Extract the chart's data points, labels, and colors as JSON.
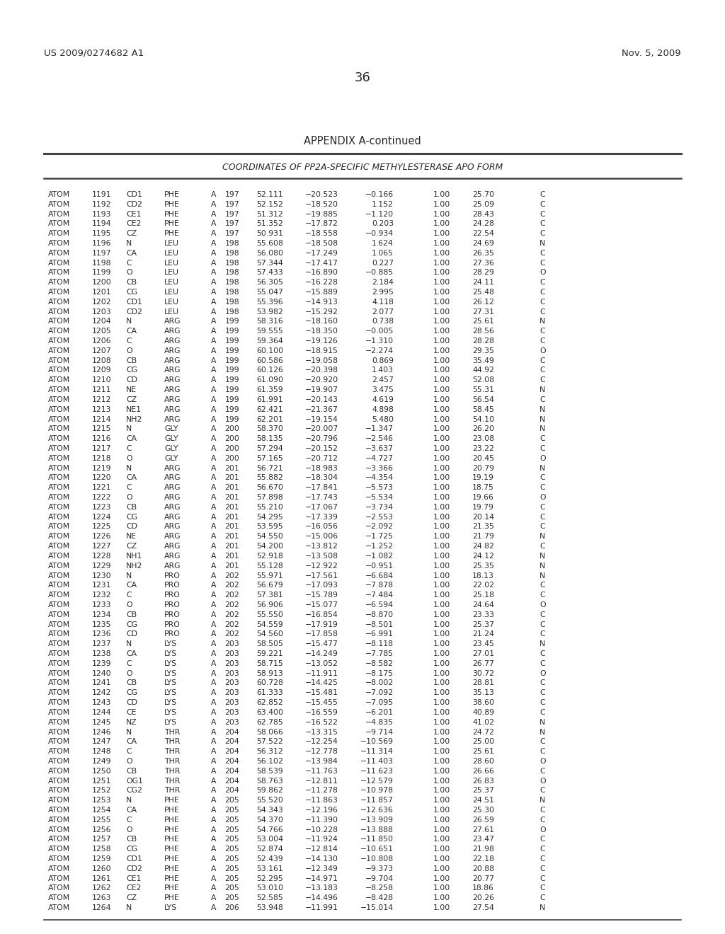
{
  "header_left": "US 2009/0274682 A1",
  "header_right": "Nov. 5, 2009",
  "page_number": "36",
  "appendix_title": "APPENDIX A-continued",
  "table_title": "COORDINATES OF PP2A-SPECIFIC METHYLESTERASE APO FORM",
  "rows": [
    [
      "ATOM",
      "1191",
      "CD1",
      "PHE",
      "A",
      "197",
      "52.111",
      "-20.523",
      "-0.166",
      "1.00",
      "25.70",
      "C"
    ],
    [
      "ATOM",
      "1192",
      "CD2",
      "PHE",
      "A",
      "197",
      "52.152",
      "-18.520",
      "1.152",
      "1.00",
      "25.09",
      "C"
    ],
    [
      "ATOM",
      "1193",
      "CE1",
      "PHE",
      "A",
      "197",
      "51.312",
      "-19.885",
      "-1.120",
      "1.00",
      "28.43",
      "C"
    ],
    [
      "ATOM",
      "1194",
      "CE2",
      "PHE",
      "A",
      "197",
      "51.352",
      "-17.872",
      "0.203",
      "1.00",
      "24.28",
      "C"
    ],
    [
      "ATOM",
      "1195",
      "CZ",
      "PHE",
      "A",
      "197",
      "50.931",
      "-18.558",
      "-0.934",
      "1.00",
      "22.54",
      "C"
    ],
    [
      "ATOM",
      "1196",
      "N",
      "LEU",
      "A",
      "198",
      "55.608",
      "-18.508",
      "1.624",
      "1.00",
      "24.69",
      "N"
    ],
    [
      "ATOM",
      "1197",
      "CA",
      "LEU",
      "A",
      "198",
      "56.080",
      "-17.249",
      "1.065",
      "1.00",
      "26.35",
      "C"
    ],
    [
      "ATOM",
      "1198",
      "C",
      "LEU",
      "A",
      "198",
      "57.344",
      "-17.417",
      "0.227",
      "1.00",
      "27.36",
      "C"
    ],
    [
      "ATOM",
      "1199",
      "O",
      "LEU",
      "A",
      "198",
      "57.433",
      "-16.890",
      "-0.885",
      "1.00",
      "28.29",
      "O"
    ],
    [
      "ATOM",
      "1200",
      "CB",
      "LEU",
      "A",
      "198",
      "56.305",
      "-16.228",
      "2.184",
      "1.00",
      "24.11",
      "C"
    ],
    [
      "ATOM",
      "1201",
      "CG",
      "LEU",
      "A",
      "198",
      "55.047",
      "-15.889",
      "2.995",
      "1.00",
      "25.48",
      "C"
    ],
    [
      "ATOM",
      "1202",
      "CD1",
      "LEU",
      "A",
      "198",
      "55.396",
      "-14.913",
      "4.118",
      "1.00",
      "26.12",
      "C"
    ],
    [
      "ATOM",
      "1203",
      "CD2",
      "LEU",
      "A",
      "198",
      "53.982",
      "-15.292",
      "2.077",
      "1.00",
      "27.31",
      "C"
    ],
    [
      "ATOM",
      "1204",
      "N",
      "ARG",
      "A",
      "199",
      "58.316",
      "-18.160",
      "0.738",
      "1.00",
      "25.61",
      "N"
    ],
    [
      "ATOM",
      "1205",
      "CA",
      "ARG",
      "A",
      "199",
      "59.555",
      "-18.350",
      "-0.005",
      "1.00",
      "28.56",
      "C"
    ],
    [
      "ATOM",
      "1206",
      "C",
      "ARG",
      "A",
      "199",
      "59.364",
      "-19.126",
      "-1.310",
      "1.00",
      "28.28",
      "C"
    ],
    [
      "ATOM",
      "1207",
      "O",
      "ARG",
      "A",
      "199",
      "60.100",
      "-18.915",
      "-2.274",
      "1.00",
      "29.35",
      "O"
    ],
    [
      "ATOM",
      "1208",
      "CB",
      "ARG",
      "A",
      "199",
      "60.586",
      "-19.058",
      "0.869",
      "1.00",
      "35.49",
      "C"
    ],
    [
      "ATOM",
      "1209",
      "CG",
      "ARG",
      "A",
      "199",
      "60.126",
      "-20.398",
      "1.403",
      "1.00",
      "44.92",
      "C"
    ],
    [
      "ATOM",
      "1210",
      "CD",
      "ARG",
      "A",
      "199",
      "61.090",
      "-20.920",
      "2.457",
      "1.00",
      "52.08",
      "C"
    ],
    [
      "ATOM",
      "1211",
      "NE",
      "ARG",
      "A",
      "199",
      "61.359",
      "-19.907",
      "3.475",
      "1.00",
      "55.31",
      "N"
    ],
    [
      "ATOM",
      "1212",
      "CZ",
      "ARG",
      "A",
      "199",
      "61.991",
      "-20.143",
      "4.619",
      "1.00",
      "56.54",
      "C"
    ],
    [
      "ATOM",
      "1213",
      "NE1",
      "ARG",
      "A",
      "199",
      "62.421",
      "-21.367",
      "4.898",
      "1.00",
      "58.45",
      "N"
    ],
    [
      "ATOM",
      "1214",
      "NH2",
      "ARG",
      "A",
      "199",
      "62.201",
      "-19.154",
      "5.480",
      "1.00",
      "54.10",
      "N"
    ],
    [
      "ATOM",
      "1215",
      "N",
      "GLY",
      "A",
      "200",
      "58.370",
      "-20.007",
      "-1.347",
      "1.00",
      "26.20",
      "N"
    ],
    [
      "ATOM",
      "1216",
      "CA",
      "GLY",
      "A",
      "200",
      "58.135",
      "-20.796",
      "-2.546",
      "1.00",
      "23.08",
      "C"
    ],
    [
      "ATOM",
      "1217",
      "C",
      "GLY",
      "A",
      "200",
      "57.294",
      "-20.152",
      "-3.637",
      "1.00",
      "23.22",
      "C"
    ],
    [
      "ATOM",
      "1218",
      "O",
      "GLY",
      "A",
      "200",
      "57.165",
      "-20.712",
      "-4.727",
      "1.00",
      "20.45",
      "O"
    ],
    [
      "ATOM",
      "1219",
      "N",
      "ARG",
      "A",
      "201",
      "56.721",
      "-18.983",
      "-3.366",
      "1.00",
      "20.79",
      "N"
    ],
    [
      "ATOM",
      "1220",
      "CA",
      "ARG",
      "A",
      "201",
      "55.882",
      "-18.304",
      "-4.354",
      "1.00",
      "19.19",
      "C"
    ],
    [
      "ATOM",
      "1221",
      "C",
      "ARG",
      "A",
      "201",
      "56.670",
      "-17.841",
      "-5.573",
      "1.00",
      "18.75",
      "C"
    ],
    [
      "ATOM",
      "1222",
      "O",
      "ARG",
      "A",
      "201",
      "57.898",
      "-17.743",
      "-5.534",
      "1.00",
      "19.66",
      "O"
    ],
    [
      "ATOM",
      "1223",
      "CB",
      "ARG",
      "A",
      "201",
      "55.210",
      "-17.067",
      "-3.734",
      "1.00",
      "19.79",
      "C"
    ],
    [
      "ATOM",
      "1224",
      "CG",
      "ARG",
      "A",
      "201",
      "54.295",
      "-17.339",
      "-2.553",
      "1.00",
      "20.14",
      "C"
    ],
    [
      "ATOM",
      "1225",
      "CD",
      "ARG",
      "A",
      "201",
      "53.595",
      "-16.056",
      "-2.092",
      "1.00",
      "21.35",
      "C"
    ],
    [
      "ATOM",
      "1226",
      "NE",
      "ARG",
      "A",
      "201",
      "54.550",
      "-15.006",
      "-1.725",
      "1.00",
      "21.79",
      "N"
    ],
    [
      "ATOM",
      "1227",
      "CZ",
      "ARG",
      "A",
      "201",
      "54.200",
      "-13.812",
      "-1.252",
      "1.00",
      "24.82",
      "C"
    ],
    [
      "ATOM",
      "1228",
      "NH1",
      "ARG",
      "A",
      "201",
      "52.918",
      "-13.508",
      "-1.082",
      "1.00",
      "24.12",
      "N"
    ],
    [
      "ATOM",
      "1229",
      "NH2",
      "ARG",
      "A",
      "201",
      "55.128",
      "-12.922",
      "-0.951",
      "1.00",
      "25.35",
      "N"
    ],
    [
      "ATOM",
      "1230",
      "N",
      "PRO",
      "A",
      "202",
      "55.971",
      "-17.561",
      "-6.684",
      "1.00",
      "18.13",
      "N"
    ],
    [
      "ATOM",
      "1231",
      "CA",
      "PRO",
      "A",
      "202",
      "56.679",
      "-17.093",
      "-7.878",
      "1.00",
      "22.02",
      "C"
    ],
    [
      "ATOM",
      "1232",
      "C",
      "PRO",
      "A",
      "202",
      "57.381",
      "-15.789",
      "-7.484",
      "1.00",
      "25.18",
      "C"
    ],
    [
      "ATOM",
      "1233",
      "O",
      "PRO",
      "A",
      "202",
      "56.906",
      "-15.077",
      "-6.594",
      "1.00",
      "24.64",
      "O"
    ],
    [
      "ATOM",
      "1234",
      "CB",
      "PRO",
      "A",
      "202",
      "55.550",
      "-16.854",
      "-8.870",
      "1.00",
      "23.33",
      "C"
    ],
    [
      "ATOM",
      "1235",
      "CG",
      "PRO",
      "A",
      "202",
      "54.559",
      "-17.919",
      "-8.501",
      "1.00",
      "25.37",
      "C"
    ],
    [
      "ATOM",
      "1236",
      "CD",
      "PRO",
      "A",
      "202",
      "54.560",
      "-17.858",
      "-6.991",
      "1.00",
      "21.24",
      "C"
    ],
    [
      "ATOM",
      "1237",
      "N",
      "LYS",
      "A",
      "203",
      "58.505",
      "-15.477",
      "-8.118",
      "1.00",
      "23.45",
      "N"
    ],
    [
      "ATOM",
      "1238",
      "CA",
      "LYS",
      "A",
      "203",
      "59.221",
      "-14.249",
      "-7.785",
      "1.00",
      "27.01",
      "C"
    ],
    [
      "ATOM",
      "1239",
      "C",
      "LYS",
      "A",
      "203",
      "58.715",
      "-13.052",
      "-8.582",
      "1.00",
      "26.77",
      "C"
    ],
    [
      "ATOM",
      "1240",
      "O",
      "LYS",
      "A",
      "203",
      "58.913",
      "-11.911",
      "-8.175",
      "1.00",
      "30.72",
      "O"
    ],
    [
      "ATOM",
      "1241",
      "CB",
      "LYS",
      "A",
      "203",
      "60.728",
      "-14.425",
      "-8.002",
      "1.00",
      "28.81",
      "C"
    ],
    [
      "ATOM",
      "1242",
      "CG",
      "LYS",
      "A",
      "203",
      "61.333",
      "-15.481",
      "-7.092",
      "1.00",
      "35.13",
      "C"
    ],
    [
      "ATOM",
      "1243",
      "CD",
      "LYS",
      "A",
      "203",
      "62.852",
      "-15.455",
      "-7.095",
      "1.00",
      "38.60",
      "C"
    ],
    [
      "ATOM",
      "1244",
      "CE",
      "LYS",
      "A",
      "203",
      "63.400",
      "-16.559",
      "-6.201",
      "1.00",
      "40.89",
      "C"
    ],
    [
      "ATOM",
      "1245",
      "NZ",
      "LYS",
      "A",
      "203",
      "62.785",
      "-16.522",
      "-4.835",
      "1.00",
      "41.02",
      "N"
    ],
    [
      "ATOM",
      "1246",
      "N",
      "THR",
      "A",
      "204",
      "58.066",
      "-13.315",
      "-9.714",
      "1.00",
      "24.72",
      "N"
    ],
    [
      "ATOM",
      "1247",
      "CA",
      "THR",
      "A",
      "204",
      "57.522",
      "-12.254",
      "-10.569",
      "1.00",
      "25.00",
      "C"
    ],
    [
      "ATOM",
      "1248",
      "C",
      "THR",
      "A",
      "204",
      "56.312",
      "-12.778",
      "-11.314",
      "1.00",
      "25.61",
      "C"
    ],
    [
      "ATOM",
      "1249",
      "O",
      "THR",
      "A",
      "204",
      "56.102",
      "-13.984",
      "-11.403",
      "1.00",
      "28.60",
      "O"
    ],
    [
      "ATOM",
      "1250",
      "CB",
      "THR",
      "A",
      "204",
      "58.539",
      "-11.763",
      "-11.623",
      "1.00",
      "26.66",
      "C"
    ],
    [
      "ATOM",
      "1251",
      "OG1",
      "THR",
      "A",
      "204",
      "58.763",
      "-12.811",
      "-12.579",
      "1.00",
      "26.83",
      "O"
    ],
    [
      "ATOM",
      "1252",
      "CG2",
      "THR",
      "A",
      "204",
      "59.862",
      "-11.278",
      "-10.978",
      "1.00",
      "25.37",
      "C"
    ],
    [
      "ATOM",
      "1253",
      "N",
      "PHE",
      "A",
      "205",
      "55.520",
      "-11.863",
      "-11.857",
      "1.00",
      "24.51",
      "N"
    ],
    [
      "ATOM",
      "1254",
      "CA",
      "PHE",
      "A",
      "205",
      "54.343",
      "-12.196",
      "-12.636",
      "1.00",
      "25.30",
      "C"
    ],
    [
      "ATOM",
      "1255",
      "C",
      "PHE",
      "A",
      "205",
      "54.370",
      "-11.390",
      "-13.909",
      "1.00",
      "26.59",
      "C"
    ],
    [
      "ATOM",
      "1256",
      "O",
      "PHE",
      "A",
      "205",
      "54.766",
      "-10.228",
      "-13.888",
      "1.00",
      "27.61",
      "O"
    ],
    [
      "ATOM",
      "1257",
      "CB",
      "PHE",
      "A",
      "205",
      "53.004",
      "-11.924",
      "-11.850",
      "1.00",
      "23.47",
      "C"
    ],
    [
      "ATOM",
      "1258",
      "CG",
      "PHE",
      "A",
      "205",
      "52.874",
      "-12.814",
      "-10.651",
      "1.00",
      "21.98",
      "C"
    ],
    [
      "ATOM",
      "1259",
      "CD1",
      "PHE",
      "A",
      "205",
      "52.439",
      "-14.130",
      "-10.808",
      "1.00",
      "22.18",
      "C"
    ],
    [
      "ATOM",
      "1260",
      "CD2",
      "PHE",
      "A",
      "205",
      "53.161",
      "-12.349",
      "-9.373",
      "1.00",
      "20.88",
      "C"
    ],
    [
      "ATOM",
      "1261",
      "CE1",
      "PHE",
      "A",
      "205",
      "52.295",
      "-14.971",
      "-9.704",
      "1.00",
      "20.77",
      "C"
    ],
    [
      "ATOM",
      "1262",
      "CE2",
      "PHE",
      "A",
      "205",
      "53.010",
      "-13.183",
      "-8.258",
      "1.00",
      "18.86",
      "C"
    ],
    [
      "ATOM",
      "1263",
      "CZ",
      "PHE",
      "A",
      "205",
      "52.585",
      "-14.496",
      "-8.428",
      "1.00",
      "20.26",
      "C"
    ],
    [
      "ATOM",
      "1264",
      "N",
      "LYS",
      "A",
      "206",
      "53.948",
      "-11.991",
      "-15.014",
      "1.00",
      "27.54",
      "N"
    ]
  ],
  "font_size": 7.8,
  "bg_color": "#ffffff",
  "text_color": "#2a2a2a",
  "line_color": "#444444"
}
